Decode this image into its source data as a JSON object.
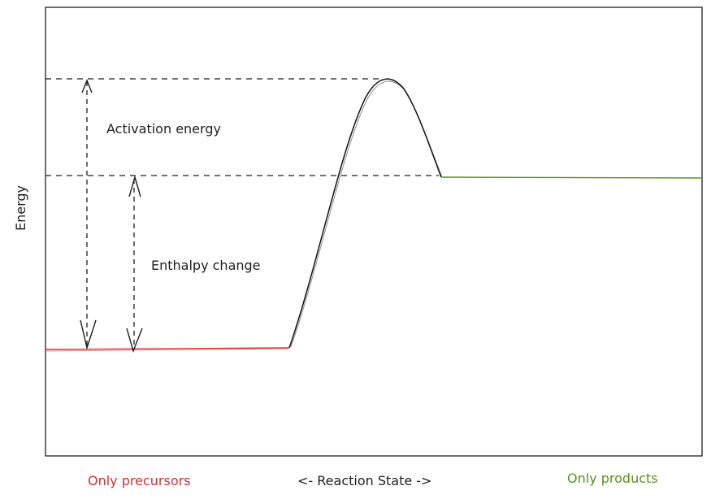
{
  "diagram": {
    "y_axis_label": "Energy",
    "x_axis_label": "<- Reaction State ->",
    "left_label": "Only precursors",
    "right_label": "Only products",
    "activation_label": "Activation energy",
    "enthalpy_label": "Enthalpy change",
    "colors": {
      "precursor_line": "#e03131",
      "product_line": "#5c940d",
      "curve": "#1e1e1e",
      "precursor_label": "#d23030",
      "product_label": "#5a8f1e"
    }
  }
}
